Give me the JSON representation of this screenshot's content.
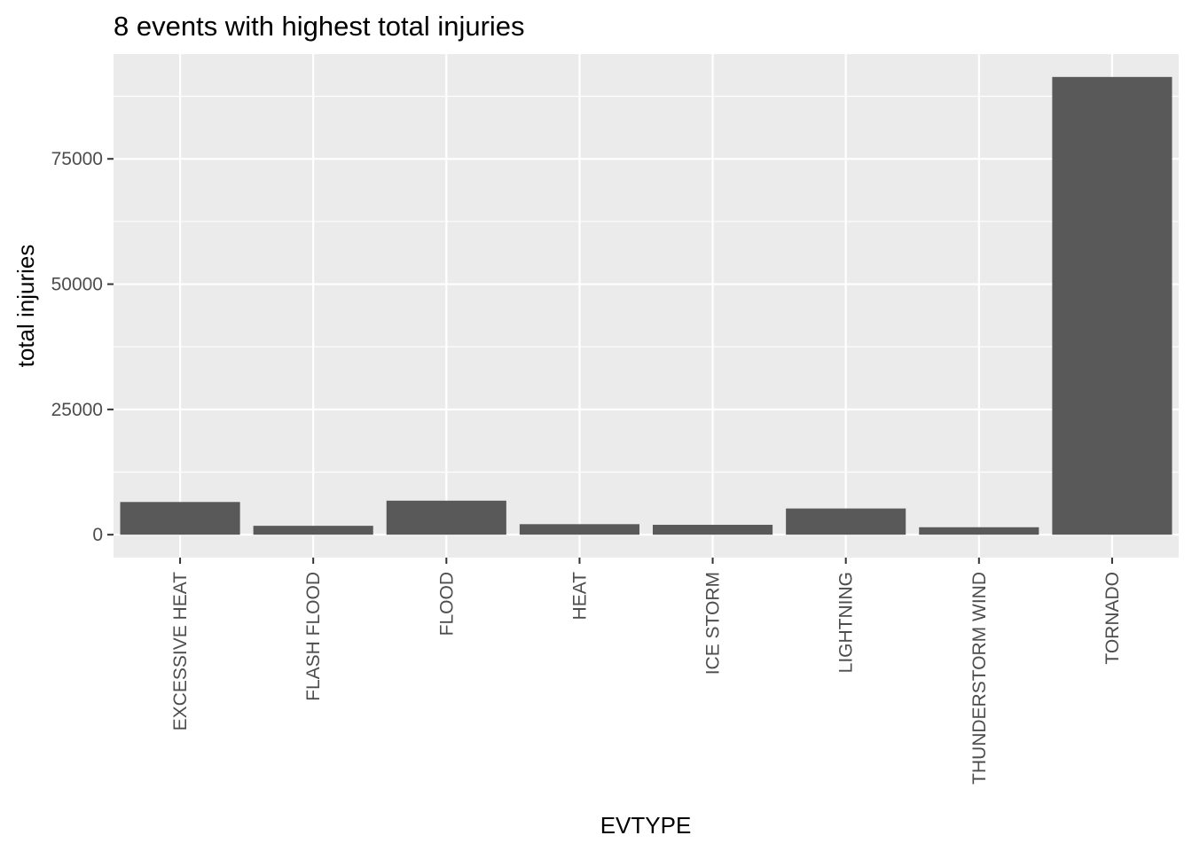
{
  "chart_data": {
    "type": "bar",
    "title": "8 events with highest total injuries",
    "xlabel": "EVTYPE",
    "ylabel": "total injuries",
    "categories": [
      "EXCESSIVE HEAT",
      "FLASH FLOOD",
      "FLOOD",
      "HEAT",
      "ICE STORM",
      "LIGHTNING",
      "THUNDERSTORM WIND",
      "TORNADO"
    ],
    "values": [
      6525,
      1777,
      6789,
      2100,
      1975,
      5230,
      1488,
      91346
    ],
    "yticks": [
      0,
      25000,
      50000,
      75000
    ],
    "ylim": [
      -4567,
      95913
    ],
    "grid": true,
    "legend": "none",
    "colors": {
      "bar": "#595959",
      "panel": "#ebebeb",
      "grid": "#ffffff",
      "tick_text": "#4d4d4d",
      "tick_mark": "#333333"
    }
  }
}
